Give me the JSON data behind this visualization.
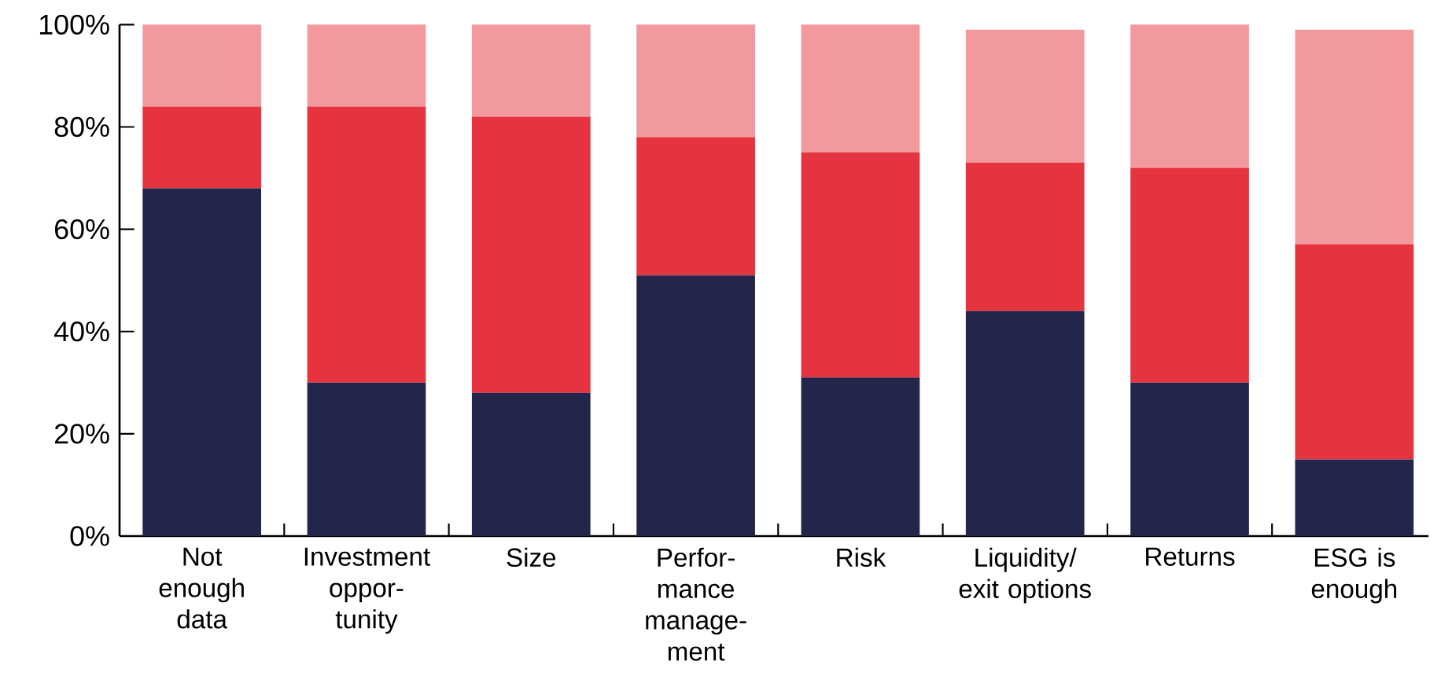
{
  "chart_data": {
    "type": "bar",
    "stacked": true,
    "categories": [
      "Not enough data",
      "Investment oppor-tunity",
      "Size",
      "Perfor-mance manage-ment",
      "Risk",
      "Liquidity/ exit options",
      "Returns",
      "ESG is enough"
    ],
    "series": [
      {
        "color": "#23264a",
        "values": [
          68,
          30,
          28,
          51,
          31,
          44,
          30,
          15
        ]
      },
      {
        "color": "#e5333f",
        "values": [
          16,
          54,
          54,
          27,
          44,
          29,
          42,
          42
        ]
      },
      {
        "color": "#f2999d",
        "values": [
          16,
          16,
          18,
          22,
          25,
          26,
          28,
          42
        ]
      }
    ],
    "ylim": [
      0,
      100
    ],
    "yticks": [
      {
        "value": 0,
        "label": "0%"
      },
      {
        "value": 20,
        "label": "20%"
      },
      {
        "value": 40,
        "label": "40%"
      },
      {
        "value": 60,
        "label": "60%"
      },
      {
        "value": 80,
        "label": "80%"
      },
      {
        "value": 100,
        "label": "100%"
      }
    ],
    "grid": false
  }
}
